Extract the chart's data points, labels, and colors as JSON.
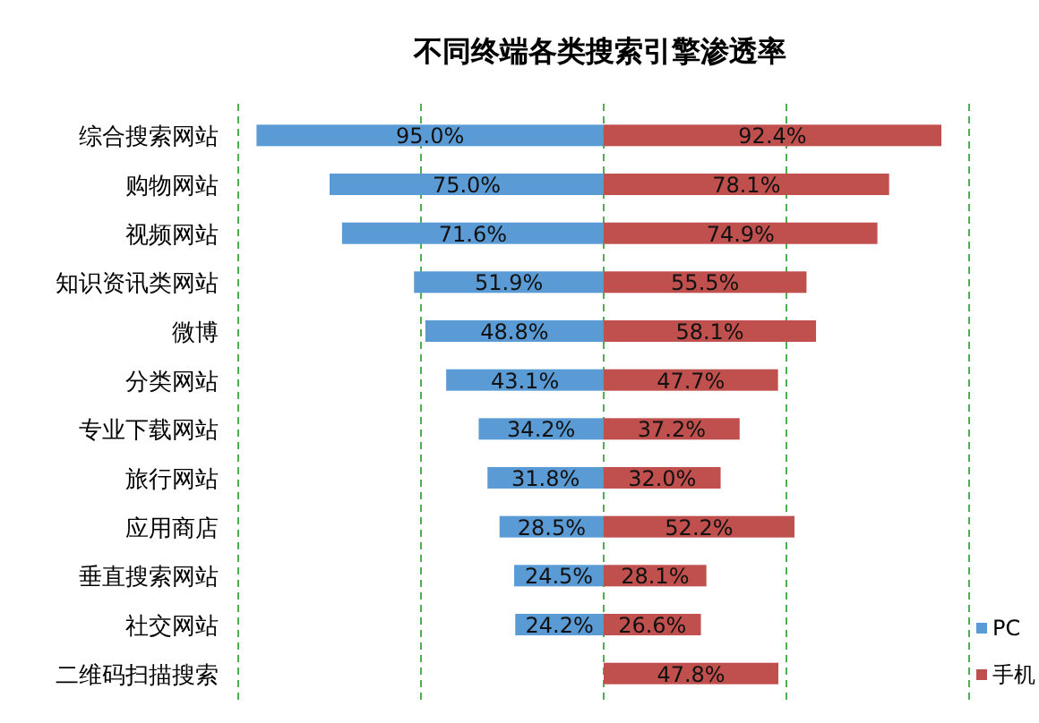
{
  "chart_data": [
    {
      "type": "bar",
      "orientation": "horizontal",
      "title": "不同终端各类搜索引擎渗透率",
      "categories": [
        "综合搜索网站",
        "购物网站",
        "视频网站",
        "知识资讯类网站",
        "微博",
        "分类网站",
        "专业下载网站",
        "旅行网站",
        "应用商店",
        "垂直搜索网站",
        "社交网站",
        "二维码扫描搜索"
      ],
      "series": [
        {
          "name": "PC",
          "color": "#5b9bd5",
          "values": [
            95.0,
            75.0,
            71.6,
            51.9,
            48.8,
            43.1,
            34.2,
            31.8,
            28.5,
            24.5,
            24.2,
            null
          ],
          "value_labels": [
            "95.0%",
            "75.0%",
            "71.6%",
            "51.9%",
            "48.8%",
            "43.1%",
            "34.2%",
            "31.8%",
            "28.5%",
            "24.5%",
            "24.2%",
            null
          ]
        }
      ],
      "xlim": [
        100,
        0
      ],
      "ref_lines": [
        {
          "axis": "x",
          "value": 100,
          "color": "#4caf50",
          "line_style": "dashed"
        },
        {
          "axis": "x",
          "value": 50,
          "color": "#4caf50",
          "line_style": "dashed"
        }
      ],
      "tick_labels": "y",
      "legend": "bottom right"
    },
    {
      "type": "bar",
      "orientation": "horizontal",
      "series": [
        {
          "name": "手机",
          "color": "#c0504d",
          "values": [
            92.4,
            78.1,
            74.9,
            55.5,
            58.1,
            47.7,
            37.2,
            32.0,
            52.2,
            28.1,
            26.6,
            47.8
          ],
          "value_labels": [
            "92.4%",
            "78.1%",
            "74.9%",
            "55.5%",
            "58.1%",
            "47.7%",
            "37.2%",
            "32.0%",
            "52.2%",
            "28.1%",
            "26.6%",
            "47.8%"
          ]
        }
      ],
      "xlim": [
        0,
        100
      ],
      "ref_lines": [
        {
          "axis": "x",
          "value": 0,
          "color": "#4caf50",
          "line_style": "dashed"
        },
        {
          "axis": "x",
          "value": 50,
          "color": "#4caf50",
          "line_style": "dashed"
        },
        {
          "axis": "x",
          "value": 100,
          "color": "#4caf50",
          "line_style": "dashed"
        }
      ],
      "tick_labels": false,
      "legend": "bottom right"
    }
  ]
}
